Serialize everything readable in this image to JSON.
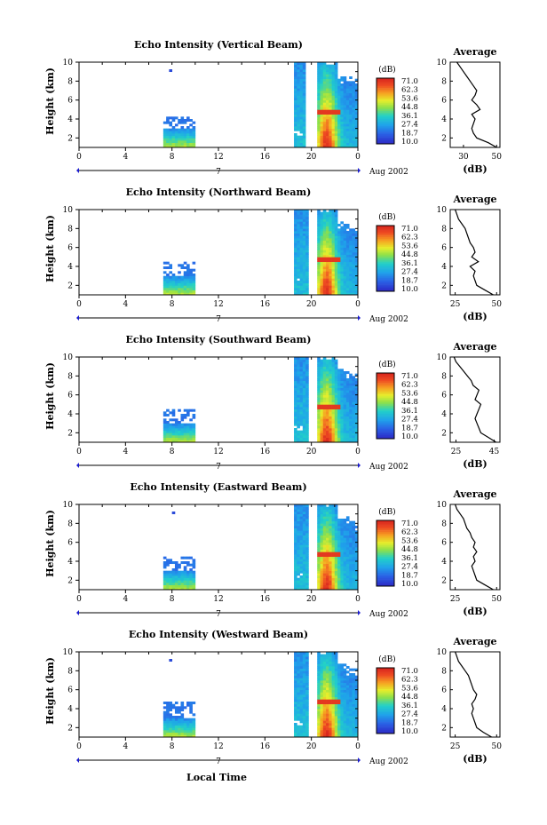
{
  "figure": {
    "xlabel": "Local Time",
    "date_label": "Aug 2002"
  },
  "chart_data": [
    {
      "type": "heatmap",
      "title": "Echo Intensity (Vertical Beam)",
      "ylabel": "Height (km)",
      "xlim": [
        0,
        24
      ],
      "ylim": [
        1,
        10
      ],
      "x_ticks": [
        "0",
        "4",
        "8",
        "12",
        "16",
        "20",
        "0"
      ],
      "y_ticks": [
        "2",
        "4",
        "6",
        "8",
        "10"
      ],
      "day_marker": "7",
      "colorbar": {
        "unit": "(dB)",
        "ticks": [
          "71.0",
          "62.3",
          "53.6",
          "44.8",
          "36.1",
          "27.4",
          "18.7",
          "10.0"
        ]
      },
      "average": {
        "title": "Average",
        "xlabel": "(dB)",
        "x_ticks": [
          "30",
          "50"
        ],
        "xlim": [
          22,
          52
        ],
        "height": [
          1.0,
          1.5,
          2.0,
          2.5,
          3.0,
          3.5,
          4.0,
          4.5,
          5.0,
          5.5,
          6.0,
          6.5,
          7.0,
          7.5,
          8.0,
          8.5,
          9.0,
          9.5,
          10.0
        ],
        "db": [
          50,
          45,
          38,
          36,
          35,
          36,
          37,
          35,
          40,
          38,
          35,
          37,
          38,
          36,
          34,
          32,
          30,
          28,
          26
        ]
      }
    },
    {
      "type": "heatmap",
      "title": "Echo Intensity (Northward Beam)",
      "ylabel": "Height (km)",
      "xlim": [
        0,
        24
      ],
      "ylim": [
        1,
        10
      ],
      "x_ticks": [
        "0",
        "4",
        "8",
        "12",
        "16",
        "20",
        "0"
      ],
      "y_ticks": [
        "2",
        "4",
        "6",
        "8",
        "10"
      ],
      "day_marker": "7",
      "colorbar": {
        "unit": "(dB)",
        "ticks": [
          "71.0",
          "62.3",
          "53.6",
          "44.8",
          "36.1",
          "27.4",
          "18.7",
          "10.0"
        ]
      },
      "average": {
        "title": "Average",
        "xlabel": "(dB)",
        "x_ticks": [
          "25",
          "50"
        ],
        "xlim": [
          22,
          52
        ],
        "height": [
          1.0,
          1.5,
          2.0,
          2.5,
          3.0,
          3.5,
          4.0,
          4.5,
          5.0,
          5.5,
          6.0,
          6.5,
          7.0,
          7.5,
          8.0,
          8.5,
          9.0,
          9.5,
          10.0
        ],
        "db": [
          48,
          43,
          38,
          37,
          36,
          37,
          34,
          39,
          35,
          37,
          36,
          34,
          33,
          32,
          31,
          29,
          27,
          26,
          25
        ]
      }
    },
    {
      "type": "heatmap",
      "title": "Echo Intensity (Southward Beam)",
      "ylabel": "Height (km)",
      "xlim": [
        0,
        24
      ],
      "ylim": [
        1,
        10
      ],
      "x_ticks": [
        "0",
        "4",
        "8",
        "12",
        "16",
        "20",
        "0"
      ],
      "y_ticks": [
        "2",
        "4",
        "6",
        "8",
        "10"
      ],
      "day_marker": "7",
      "colorbar": {
        "unit": "(dB)",
        "ticks": [
          "71.0",
          "62.3",
          "53.6",
          "44.8",
          "36.1",
          "27.4",
          "18.7",
          "10.0"
        ]
      },
      "average": {
        "title": "Average",
        "xlabel": "(dB)",
        "x_ticks": [
          "25",
          "45"
        ],
        "xlim": [
          22,
          48
        ],
        "height": [
          1.0,
          1.5,
          2.0,
          2.5,
          3.0,
          3.5,
          4.0,
          4.5,
          5.0,
          5.5,
          6.0,
          6.5,
          7.0,
          7.5,
          8.0,
          8.5,
          9.0,
          9.5,
          10.0
        ],
        "db": [
          46,
          42,
          38,
          37,
          36,
          35,
          36,
          37,
          38,
          35,
          36,
          37,
          34,
          33,
          31,
          29,
          27,
          25,
          24
        ]
      }
    },
    {
      "type": "heatmap",
      "title": "Echo Intensity (Eastward Beam)",
      "ylabel": "Height (km)",
      "xlim": [
        0,
        24
      ],
      "ylim": [
        1,
        10
      ],
      "x_ticks": [
        "0",
        "4",
        "8",
        "12",
        "16",
        "20",
        "0"
      ],
      "y_ticks": [
        "2",
        "4",
        "6",
        "8",
        "10"
      ],
      "day_marker": "7",
      "colorbar": {
        "unit": "(dB)",
        "ticks": [
          "71.0",
          "62.3",
          "53.6",
          "44.8",
          "36.1",
          "27.4",
          "18.7",
          "10.0"
        ]
      },
      "average": {
        "title": "Average",
        "xlabel": "(dB)",
        "x_ticks": [
          "25",
          "50"
        ],
        "xlim": [
          22,
          52
        ],
        "height": [
          1.0,
          1.5,
          2.0,
          2.5,
          3.0,
          3.5,
          4.0,
          4.5,
          5.0,
          5.5,
          6.0,
          6.5,
          7.0,
          7.5,
          8.0,
          8.5,
          9.0,
          9.5,
          10.0
        ],
        "db": [
          48,
          43,
          38,
          37,
          36,
          35,
          37,
          36,
          38,
          36,
          37,
          35,
          34,
          32,
          31,
          30,
          28,
          26,
          25
        ]
      }
    },
    {
      "type": "heatmap",
      "title": "Echo Intensity (Westward Beam)",
      "ylabel": "Height (km)",
      "xlim": [
        0,
        24
      ],
      "ylim": [
        1,
        10
      ],
      "x_ticks": [
        "0",
        "4",
        "8",
        "12",
        "16",
        "20",
        "0"
      ],
      "y_ticks": [
        "2",
        "4",
        "6",
        "8",
        "10"
      ],
      "day_marker": "7",
      "colorbar": {
        "unit": "(dB)",
        "ticks": [
          "71.0",
          "62.3",
          "53.6",
          "44.8",
          "36.1",
          "27.4",
          "18.7",
          "10.0"
        ]
      },
      "average": {
        "title": "Average",
        "xlabel": "(dB)",
        "x_ticks": [
          "25",
          "50"
        ],
        "xlim": [
          22,
          52
        ],
        "height": [
          1.0,
          1.5,
          2.0,
          2.5,
          3.0,
          3.5,
          4.0,
          4.5,
          5.0,
          5.5,
          6.0,
          6.5,
          7.0,
          7.5,
          8.0,
          8.5,
          9.0,
          9.5,
          10.0
        ],
        "db": [
          47,
          42,
          38,
          37,
          36,
          35,
          36,
          35,
          37,
          38,
          36,
          35,
          34,
          33,
          31,
          29,
          27,
          26,
          25
        ]
      }
    }
  ]
}
